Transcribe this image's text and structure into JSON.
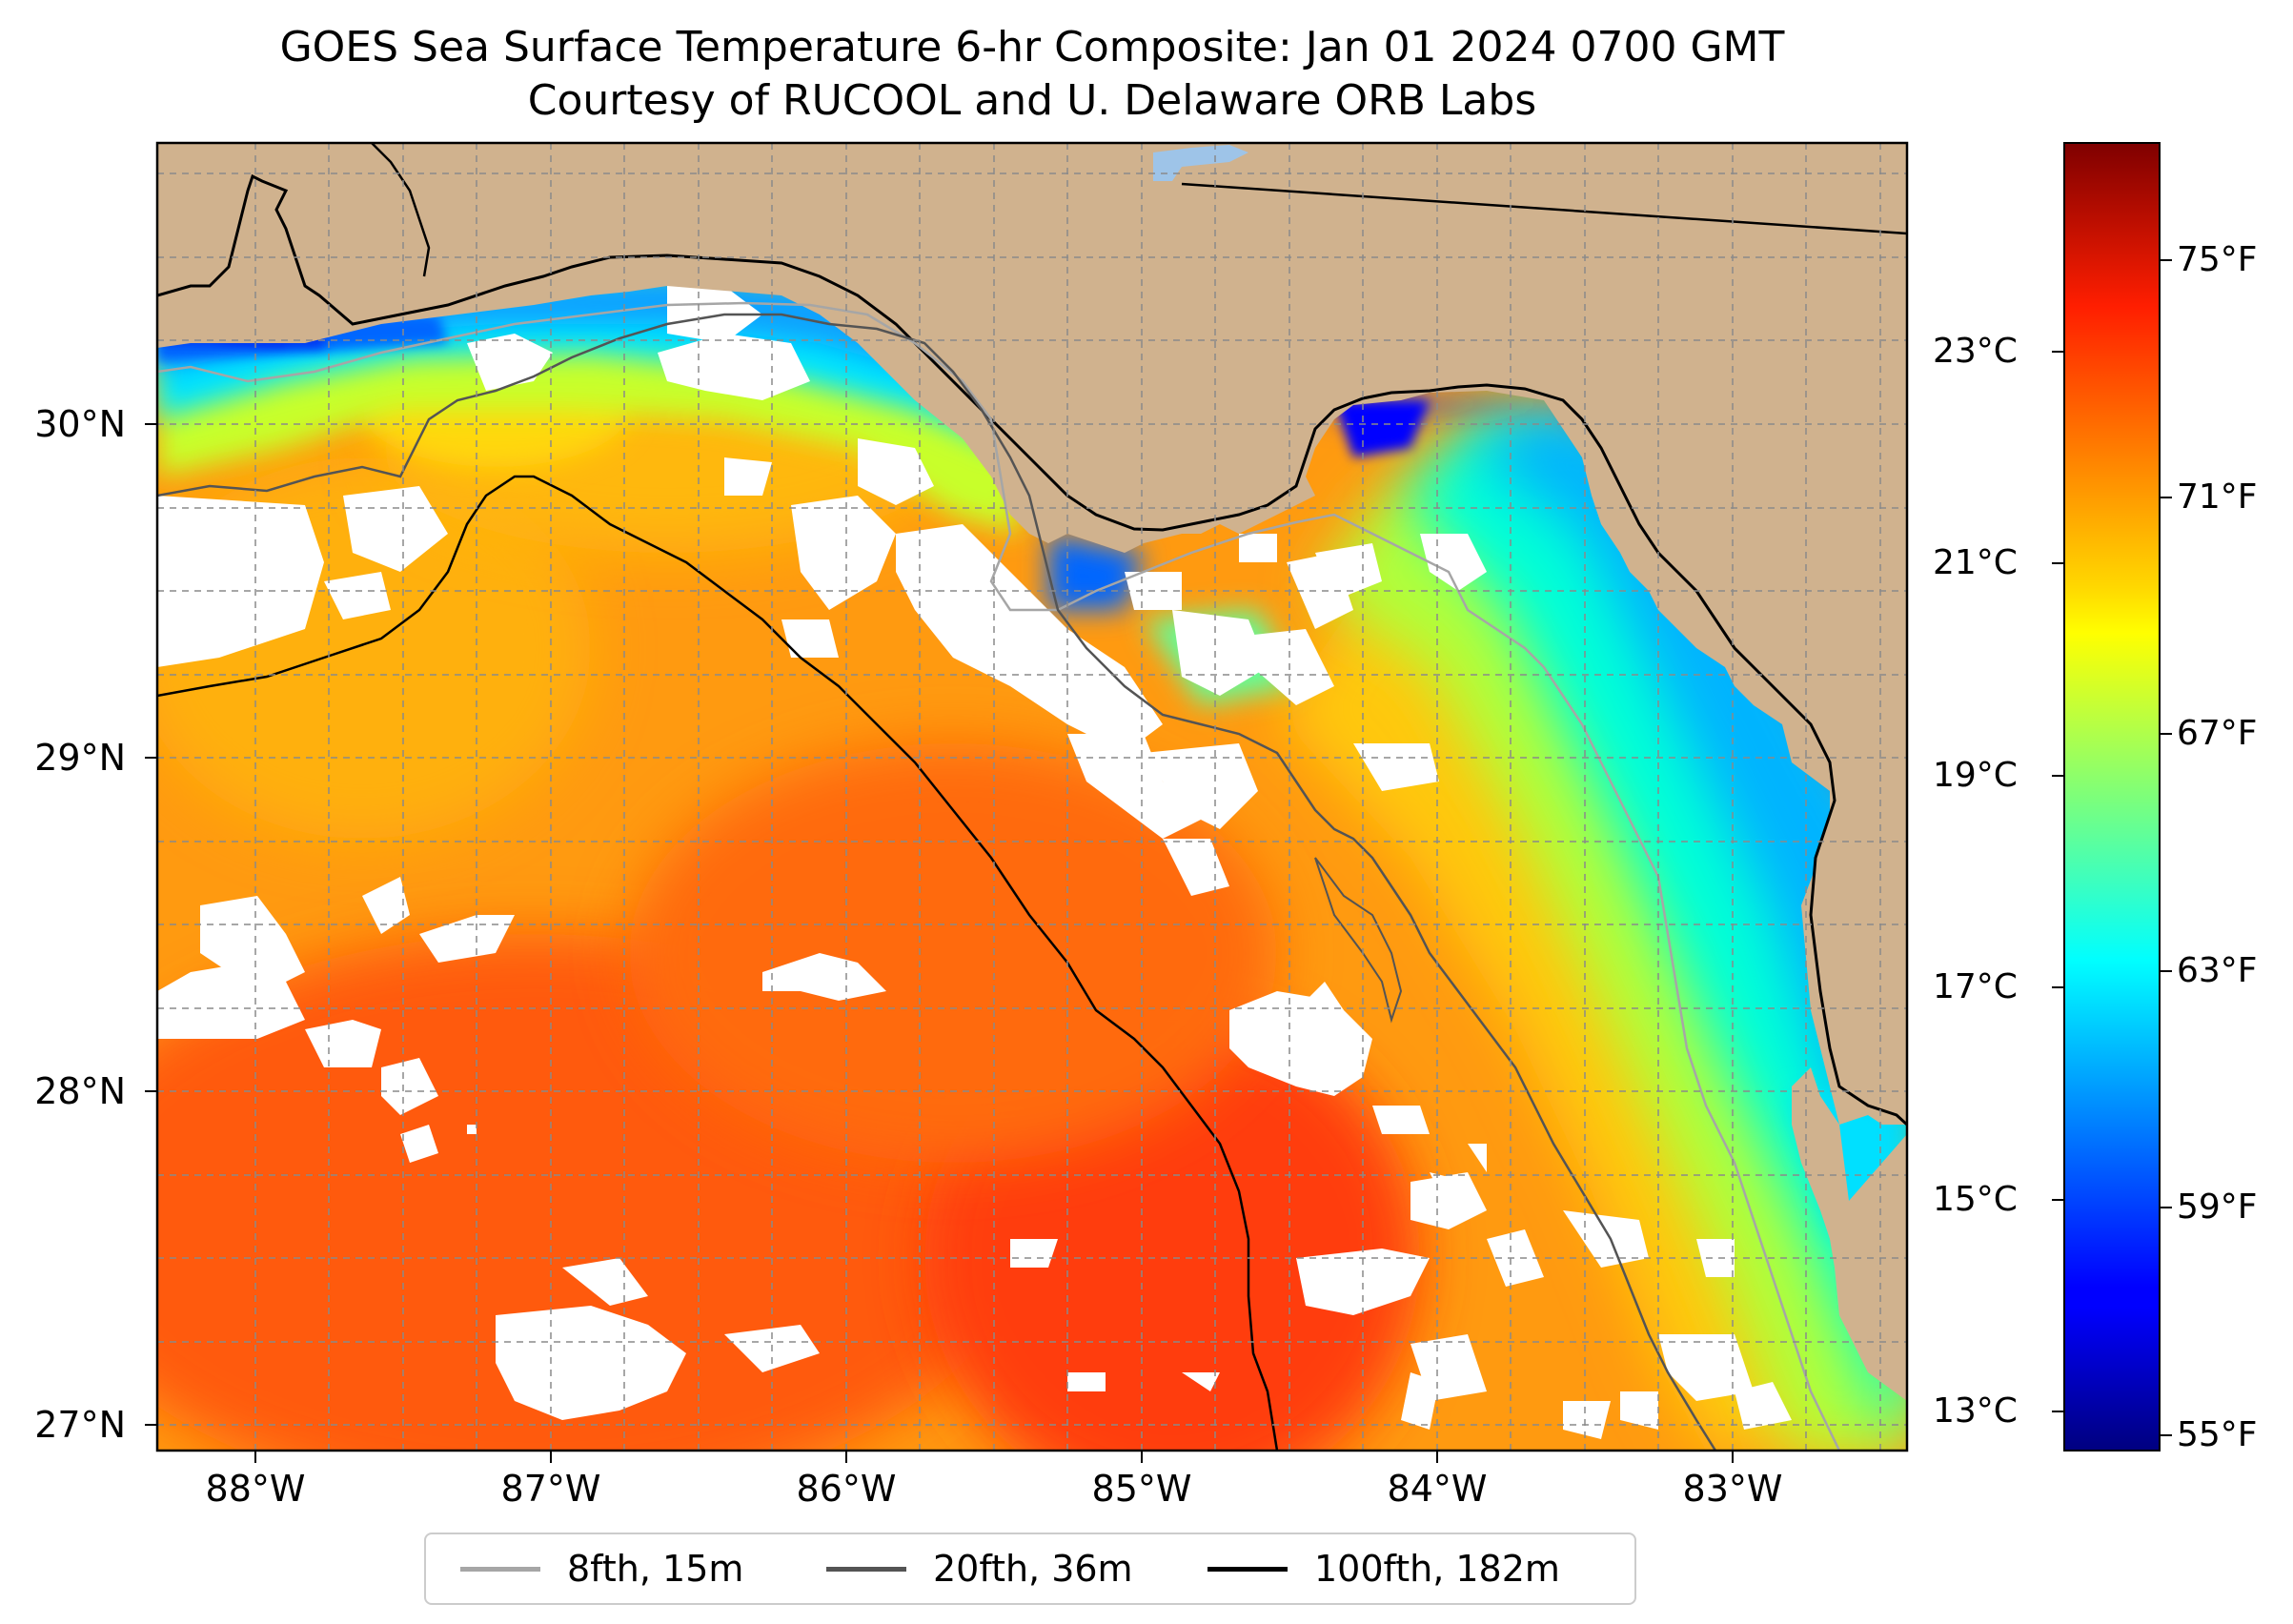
{
  "title": "GOES Sea Surface Temperature 6-hr Composite: Jan 01 2024 0700 GMT",
  "subtitle": "Courtesy of RUCOOL and U. Delaware ORB Labs",
  "map": {
    "lon_range": [
      -88.33,
      -82.41
    ],
    "lat_range": [
      26.94,
      30.87
    ],
    "lon_ticks": [
      {
        "value": -88,
        "label": "88°W"
      },
      {
        "value": -87,
        "label": "87°W"
      },
      {
        "value": -86,
        "label": "86°W"
      },
      {
        "value": -85,
        "label": "85°W"
      },
      {
        "value": -84,
        "label": "84°W"
      },
      {
        "value": -83,
        "label": "83°W"
      }
    ],
    "lat_ticks": [
      {
        "value": 30,
        "label": "30°N"
      },
      {
        "value": 29,
        "label": "29°N"
      },
      {
        "value": 28,
        "label": "28°N"
      },
      {
        "value": 27,
        "label": "27°N"
      }
    ],
    "gridlines": true,
    "colors": {
      "land": "#d0b28e",
      "no_data": "#ffffff",
      "coastline": "#000000",
      "grid": "#9a9a9a"
    }
  },
  "colorbar": {
    "colormap": "jet",
    "range_f": [
      54.5,
      77.5
    ],
    "celsius_ticks": [
      {
        "value": 23,
        "label": "23°C"
      },
      {
        "value": 21,
        "label": "21°C"
      },
      {
        "value": 19,
        "label": "19°C"
      },
      {
        "value": 17,
        "label": "17°C"
      },
      {
        "value": 15,
        "label": "15°C"
      },
      {
        "value": 13,
        "label": "13°C"
      }
    ],
    "fahrenheit_ticks": [
      {
        "value": 75,
        "label": "75°F"
      },
      {
        "value": 71,
        "label": "71°F"
      },
      {
        "value": 67,
        "label": "67°F"
      },
      {
        "value": 63,
        "label": "63°F"
      },
      {
        "value": 59,
        "label": "59°F"
      },
      {
        "value": 55,
        "label": "55°F"
      }
    ]
  },
  "legend": {
    "placement": "bottom-center",
    "items": [
      {
        "label": "8fth, 15m",
        "color": "#a6a6a6"
      },
      {
        "label": "20fth, 36m",
        "color": "#545454"
      },
      {
        "label": "100fth, 182m",
        "color": "#000000"
      }
    ]
  }
}
